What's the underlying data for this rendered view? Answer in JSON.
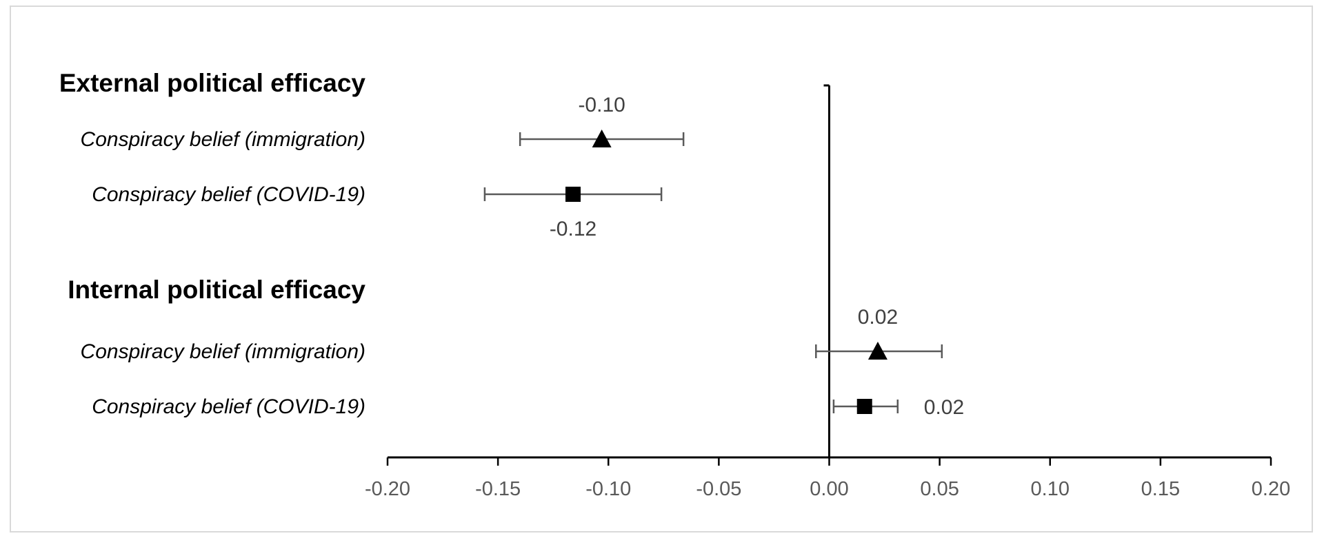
{
  "chart_data": {
    "type": "scatter",
    "title": "",
    "xlabel": "",
    "ylabel": "",
    "xlim": [
      -0.2,
      0.2
    ],
    "x_ticks": [
      "-0.20",
      "-0.15",
      "-0.10",
      "-0.05",
      "0.00",
      "0.05",
      "0.10",
      "0.15",
      "0.20"
    ],
    "grid": false,
    "groups": [
      {
        "label": "External political efficacy",
        "rows": [
          {
            "label": "Conspiracy belief (immigration)",
            "marker": "triangle",
            "value": -0.103,
            "ci": [
              -0.14,
              -0.066
            ],
            "data_label": "-0.10",
            "label_pos": "above"
          },
          {
            "label": "Conspiracy belief (COVID-19)",
            "marker": "square",
            "value": -0.116,
            "ci": [
              -0.156,
              -0.076
            ],
            "data_label": "-0.12",
            "label_pos": "below"
          }
        ]
      },
      {
        "label": "Internal political efficacy",
        "rows": [
          {
            "label": "Conspiracy belief (immigration)",
            "marker": "triangle",
            "value": 0.022,
            "ci": [
              -0.006,
              0.051
            ],
            "data_label": "0.02",
            "label_pos": "above"
          },
          {
            "label": "Conspiracy belief (COVID-19)",
            "marker": "square",
            "value": 0.016,
            "ci": [
              0.002,
              0.031
            ],
            "data_label": "0.02",
            "label_pos": "right"
          }
        ]
      }
    ]
  }
}
